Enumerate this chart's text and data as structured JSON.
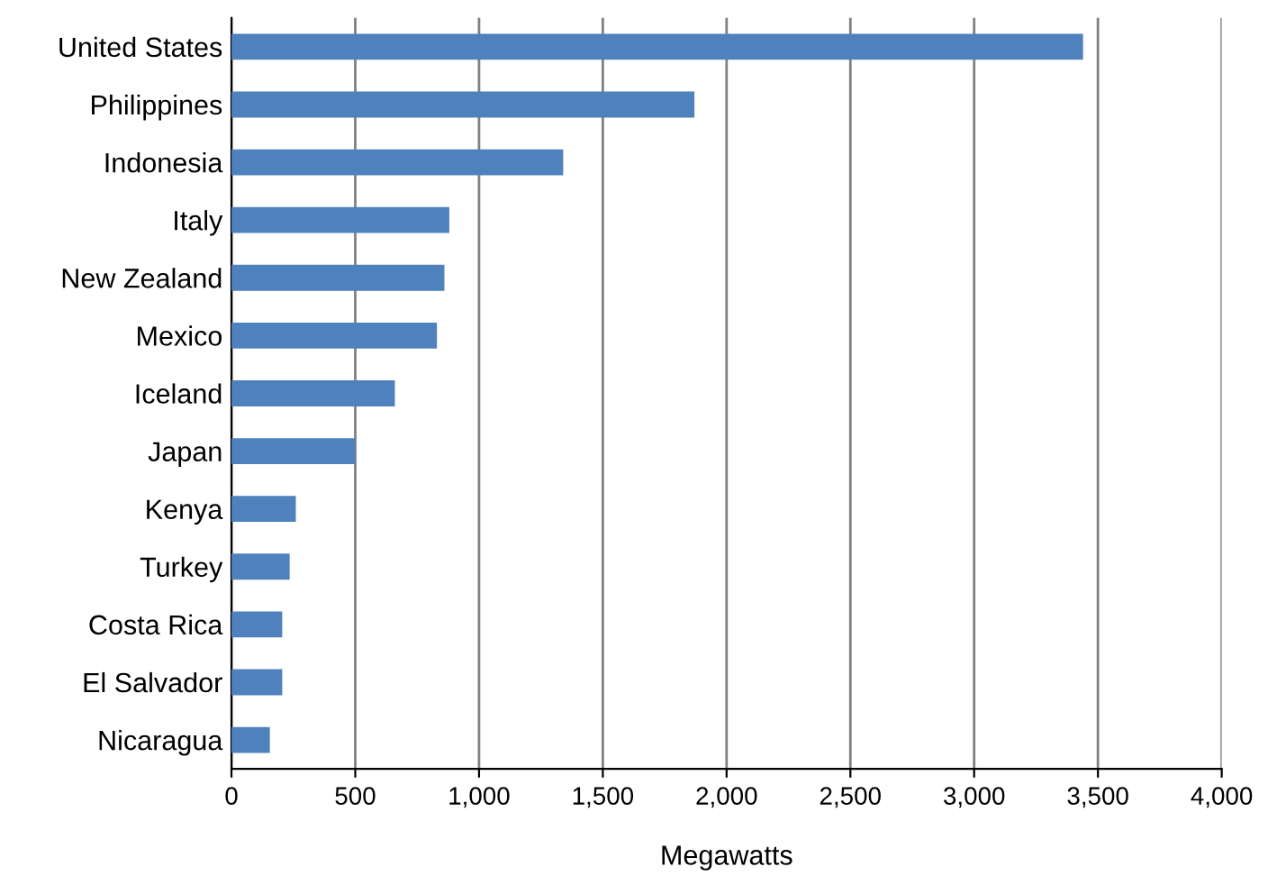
{
  "chart_data": {
    "type": "bar",
    "orientation": "horizontal",
    "xlabel": "Megawatts",
    "categories": [
      "United States",
      "Philippines",
      "Indonesia",
      "Italy",
      "New Zealand",
      "Mexico",
      "Iceland",
      "Japan",
      "Kenya",
      "Turkey",
      "Costa Rica",
      "El Salvador",
      "Nicaragua"
    ],
    "values": [
      3440,
      1870,
      1340,
      880,
      860,
      830,
      660,
      500,
      260,
      235,
      205,
      205,
      155
    ],
    "color": "#4f81bd",
    "xlim": [
      0,
      4000
    ],
    "xticks": [
      0,
      500,
      {
        "value": 1000,
        "label": "1,000"
      },
      {
        "value": 1500,
        "label": "1,500"
      },
      {
        "value": 2000,
        "label": "2,000"
      },
      {
        "value": 2500,
        "label": "2,500"
      },
      {
        "value": 3000,
        "label": "3,000"
      },
      {
        "value": 3500,
        "label": "3,500"
      },
      {
        "value": 4000,
        "label": "4,000"
      }
    ],
    "grid": "x"
  }
}
